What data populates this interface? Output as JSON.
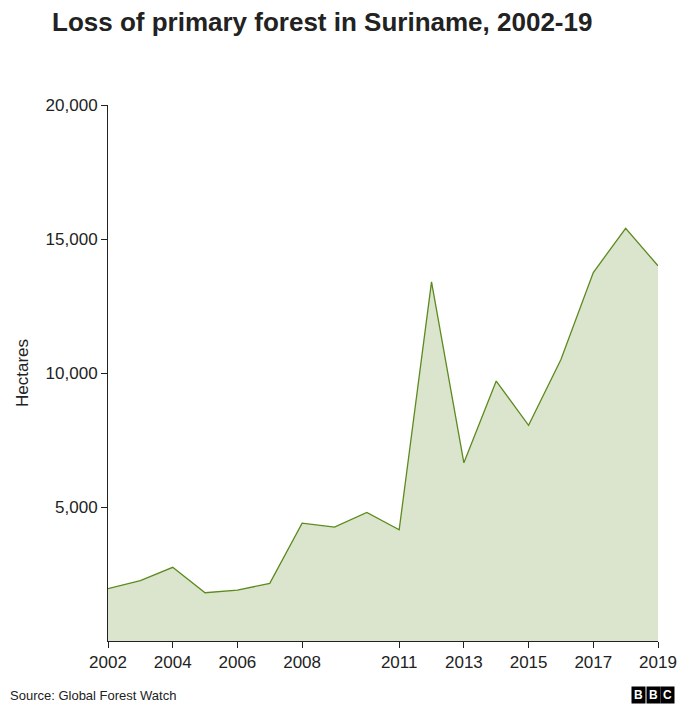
{
  "chart_data": {
    "type": "area",
    "title": "Loss of primary forest in Suriname, 2002-19",
    "y_label": "Hectares",
    "x": [
      2002,
      2003,
      2004,
      2005,
      2006,
      2007,
      2008,
      2009,
      2010,
      2011,
      2012,
      2013,
      2014,
      2015,
      2016,
      2017,
      2018,
      2019
    ],
    "values": [
      1950,
      2250,
      2750,
      1800,
      1900,
      2150,
      4400,
      4250,
      4800,
      4150,
      13400,
      6650,
      9700,
      8050,
      10500,
      13750,
      15400,
      14000
    ],
    "color": "#5c8a1e",
    "xlim": [
      2002,
      2019
    ],
    "xticks": [
      2002,
      2004,
      2006,
      2008,
      2011,
      2013,
      2015,
      2017,
      2019
    ],
    "ylim": [
      0,
      20000
    ],
    "yticks": [
      {
        "value": 5000,
        "label": "5,000"
      },
      {
        "value": 10000,
        "label": "10,000"
      },
      {
        "value": 15000,
        "label": "15,000"
      },
      {
        "value": 20000,
        "label": "20,000"
      }
    ],
    "grid": false,
    "source": "Source: Global Forest Watch",
    "logo": "BBC"
  }
}
